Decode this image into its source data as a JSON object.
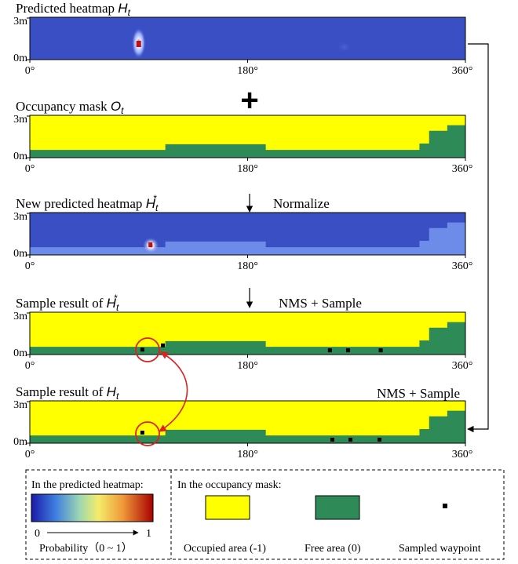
{
  "palette": {
    "heat_base": "#3a4fc4",
    "heat_low": "#2233aa",
    "heat_hot": "#b81414",
    "free_heat": "#6d8be8",
    "occupied": "#ffff00",
    "free": "#2e8b57",
    "waypoint": "#000000",
    "highlight": "#e0201c",
    "frame": "#000000"
  },
  "axes": {
    "y_top": "3m",
    "y_bottom": "0m",
    "x_ticks": [
      "0°",
      "180°",
      "360°"
    ]
  },
  "panels": [
    {
      "title_prefix": "Predicted heatmap ",
      "title_sym": "H",
      "title_sub": "t",
      "title_sup": ""
    },
    {
      "title_prefix": "Occupancy mask ",
      "title_sym": "O",
      "title_sub": "t",
      "title_sup": ""
    },
    {
      "title_prefix": "New predicted heatmap ",
      "title_sym": "H",
      "title_sub": "t",
      "title_sup": "*"
    },
    {
      "title_prefix": "Sample result of ",
      "title_sym": "H",
      "title_sub": "t",
      "title_sup": "*"
    },
    {
      "title_prefix": "Sample result of ",
      "title_sym": "H",
      "title_sub": "t",
      "title_sup": ""
    }
  ],
  "operators": {
    "plus": "+",
    "normalize": "Normalize",
    "nms_sample": "NMS + Sample"
  },
  "legend": {
    "heatmap_header": "In the predicted heatmap:",
    "scale_min": "0",
    "scale_max": "1",
    "probability_label": "Probability（0 ~ 1）",
    "occupancy_header": "In the occupancy mask:",
    "occupied_label": "Occupied area (-1)",
    "free_label": "Free area (0)",
    "waypoint_label": "Sampled waypoint"
  },
  "terrain_profile": {
    "description_units": "degrees vs metres",
    "points": [
      [
        0,
        0.55
      ],
      [
        60,
        0.55
      ],
      [
        100,
        0.55
      ],
      [
        112,
        0.95
      ],
      [
        180,
        0.95
      ],
      [
        195,
        0.55
      ],
      [
        300,
        0.55
      ],
      [
        322,
        1.0
      ],
      [
        330,
        1.9
      ],
      [
        345,
        2.3
      ],
      [
        358,
        2.3
      ],
      [
        360,
        2.3
      ]
    ]
  }
}
